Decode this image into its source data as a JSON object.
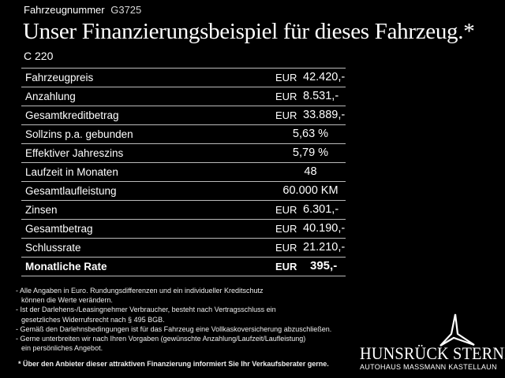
{
  "header": {
    "vehicle_number_label": "Fahrzeugnummer",
    "vehicle_number": "G3725",
    "headline": "Unser Finanzierungsbeispiel für dieses Fahrzeug.*",
    "model": "C 220"
  },
  "table": {
    "rows": [
      {
        "label": "Fahrzeugpreis",
        "currency": "EUR",
        "value": "42.420,-"
      },
      {
        "label": "Anzahlung",
        "currency": "EUR",
        "value": "8.531,-"
      },
      {
        "label": "Gesamtkreditbetrag",
        "currency": "EUR",
        "value": "33.889,-"
      },
      {
        "label": "Sollzins p.a. gebunden",
        "currency": "",
        "value": "5,63 %"
      },
      {
        "label": "Effektiver Jahreszins",
        "currency": "",
        "value": "5,79 %"
      },
      {
        "label": "Laufzeit in Monaten",
        "currency": "",
        "value": "48"
      },
      {
        "label": "Gesamtlaufleistung",
        "currency": "",
        "value": "60.000 KM"
      },
      {
        "label": "Zinsen",
        "currency": "EUR",
        "value": "6.301,-"
      },
      {
        "label": "Gesamtbetrag",
        "currency": "EUR",
        "value": "40.190,-"
      },
      {
        "label": "Schlussrate",
        "currency": "EUR",
        "value": "21.210,-"
      },
      {
        "label": "Monatliche Rate",
        "currency": "EUR",
        "value": "395,-"
      }
    ]
  },
  "notes": [
    "- Alle Angaben in Euro. Rundungsdifferenzen und ein individueller Kreditschutz",
    "können die Werte verändern.",
    "- Ist der Darlehens-/Leasingnehmer Verbraucher, besteht nach Vertragsschluss ein",
    "gesetzliches Widerrufsrecht nach § 495 BGB.",
    "- Gemäß den Darlehnsbedingungen ist für das Fahrzeug eine Vollkaskoversicherung abzuschließen.",
    "- Gerne unterbreiten wir nach Ihren Vorgaben (gewünschte Anzahlung/Laufzeit/Laufleistung)",
    "ein persönliches Angebot."
  ],
  "footnote": "* Über den Anbieter dieser attraktiven Finanzierung informiert Sie Ihr Verkaufsberater gerne.",
  "logo": {
    "name": "HUNSRÜCK STERNE",
    "subtitle": "AUTOHAUS MASSMANN KASTELLAUN",
    "icon": "star-logo-icon"
  },
  "colors": {
    "background": "#000000",
    "text": "#ffffff",
    "rule": "#bbbbbb"
  }
}
